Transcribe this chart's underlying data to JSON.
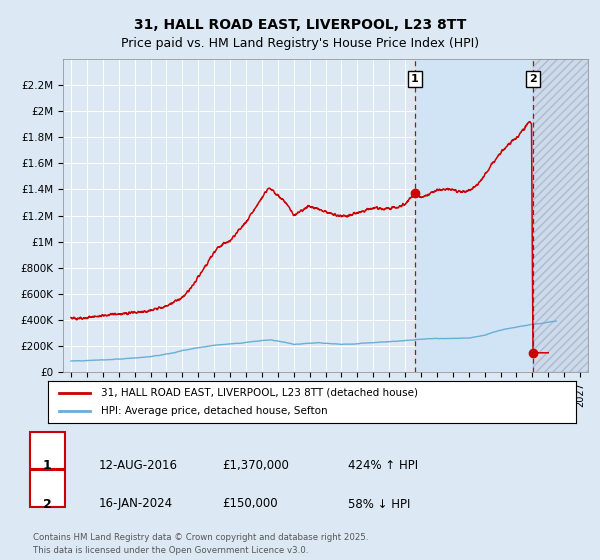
{
  "title": "31, HALL ROAD EAST, LIVERPOOL, L23 8TT",
  "subtitle": "Price paid vs. HM Land Registry's House Price Index (HPI)",
  "background_color": "#dce9f5",
  "plot_bg_color": "#dce9f5",
  "grid_color": "#ffffff",
  "red_line_color": "#cc0000",
  "blue_line_color": "#6aaed6",
  "marker1_x": 2016.617,
  "marker2_x": 2024.042,
  "marker1_date": "12-AUG-2016",
  "marker1_price": "£1,370,000",
  "marker1_hpi": "424% ↑ HPI",
  "marker2_date": "16-JAN-2024",
  "marker2_price": "£150,000",
  "marker2_hpi": "58% ↓ HPI",
  "legend_line1": "31, HALL ROAD EAST, LIVERPOOL, L23 8TT (detached house)",
  "legend_line2": "HPI: Average price, detached house, Sefton",
  "footer": "Contains HM Land Registry data © Crown copyright and database right 2025.\nThis data is licensed under the Open Government Licence v3.0.",
  "ylim": [
    0,
    2400000
  ],
  "xlim_start": 1994.5,
  "xlim_end": 2027.5,
  "yticks": [
    0,
    200000,
    400000,
    600000,
    800000,
    1000000,
    1200000,
    1400000,
    1600000,
    1800000,
    2000000,
    2200000
  ],
  "ytick_labels": [
    "£0",
    "£200K",
    "£400K",
    "£600K",
    "£800K",
    "£1M",
    "£1.2M",
    "£1.4M",
    "£1.6M",
    "£1.8M",
    "£2M",
    "£2.2M"
  ],
  "xticks": [
    1995,
    1996,
    1997,
    1998,
    1999,
    2000,
    2001,
    2002,
    2003,
    2004,
    2005,
    2006,
    2007,
    2008,
    2009,
    2010,
    2011,
    2012,
    2013,
    2014,
    2015,
    2016,
    2017,
    2018,
    2019,
    2020,
    2021,
    2022,
    2023,
    2024,
    2025,
    2026,
    2027
  ],
  "marker1_y": 1370000,
  "marker2_y": 150000,
  "hatch_bg_color": "#cddaeb",
  "light_blue_span_color": "#dce9f5"
}
